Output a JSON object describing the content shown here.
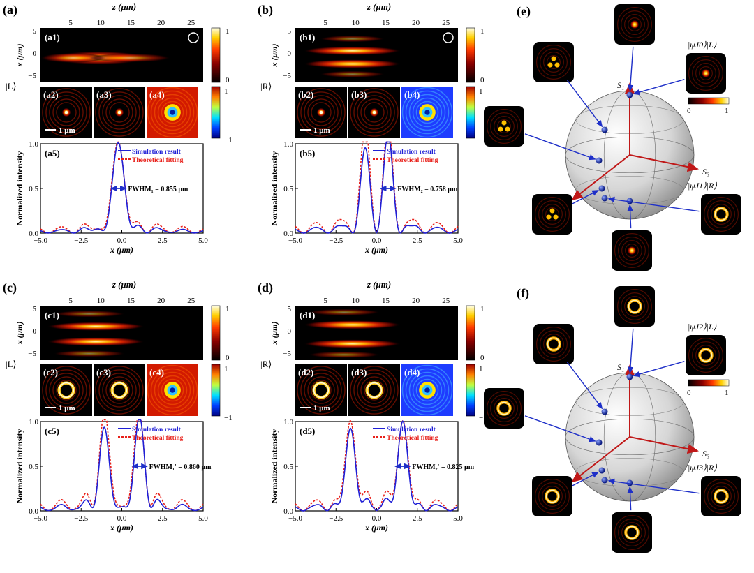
{
  "panel_letters": {
    "a": "(a)",
    "b": "(b)",
    "c": "(c)",
    "d": "(d)",
    "e": "(e)",
    "f": "(f)"
  },
  "axis": {
    "z_label": "z (μm)",
    "x_label": "x (μm)",
    "x_um_label": "x (μm)",
    "intensity_label": "Normalized intensity",
    "z_ticks": [
      "5",
      "10",
      "15",
      "20",
      "25"
    ],
    "x_ticks_field": [
      "5",
      "0",
      "−5"
    ],
    "cb_ticks_top": [
      "1",
      "0"
    ],
    "cb_ticks_pol": [
      "1",
      "−1"
    ]
  },
  "scale_bar": "1 μm",
  "legend": {
    "sim": "Simulation result",
    "theory": "Theoretical fitting"
  },
  "colors": {
    "sim": "#1f1fd6",
    "theory": "#e8201a",
    "arrow": "#1e2fc8",
    "axis_red": "#c01818"
  },
  "rows": [
    {
      "key": "a",
      "state": "|L⟩",
      "sub": [
        "(a1)",
        "(a2)",
        "(a3)",
        "(a4)",
        "(a5)"
      ],
      "fwhm": "FWHM₁ = 0.855 μm",
      "circ": true,
      "pol": "red"
    },
    {
      "key": "b",
      "state": "|R⟩",
      "sub": [
        "(b1)",
        "(b2)",
        "(b3)",
        "(b4)",
        "(b5)"
      ],
      "fwhm": "FWHM₂ = 0.758 μm",
      "circ": true,
      "pol": "blue"
    },
    {
      "key": "c",
      "state": "|L⟩",
      "sub": [
        "(c1)",
        "(c2)",
        "(c3)",
        "(c4)",
        "(c5)"
      ],
      "fwhm": "FWHM₁' = 0.860 μm",
      "circ": false,
      "pol": "yellow"
    },
    {
      "key": "d",
      "state": "|R⟩",
      "sub": [
        "(d1)",
        "(d2)",
        "(d3)",
        "(d4)",
        "(d5)"
      ],
      "fwhm": "FWHM₂' = 0.825 μm",
      "circ": false,
      "pol": "blue"
    }
  ],
  "sphere_e": {
    "s1": "S₁",
    "s2": "S₂",
    "s3": "S₃",
    "top_label": "|ψJ0⟩|L⟩",
    "bottom_label": "|ψJ1⟩|R⟩",
    "cb": [
      "0",
      "1"
    ]
  },
  "sphere_f": {
    "s1": "S₁",
    "s2": "S₂",
    "s3": "S₃",
    "top_label": "|ψJ2⟩|L⟩",
    "bottom_label": "|ψJ3⟩|R⟩",
    "cb": [
      "0",
      "1"
    ]
  },
  "chart_data": [
    {
      "type": "line",
      "panel": "(a5)",
      "xlabel": "x (μm)",
      "ylabel": "Normalized intensity",
      "xlim": [
        -5,
        5
      ],
      "ylim": [
        0,
        1
      ],
      "x_ticks": [
        "−5.0",
        "−2.5",
        "0.0",
        "2.5",
        "5.0"
      ],
      "y_ticks": [
        "0.0",
        "0.5",
        "1.0"
      ],
      "series": [
        {
          "name": "Simulation result",
          "shape": "single peak",
          "peak_x": [
            -0.2
          ],
          "peak_y": [
            1.0
          ]
        },
        {
          "name": "Theoretical fitting",
          "shape": "single peak",
          "peak_x": [
            -0.2
          ],
          "peak_y": [
            1.0
          ]
        }
      ],
      "annotation": "FWHM₁ = 0.855 μm"
    },
    {
      "type": "line",
      "panel": "(b5)",
      "xlabel": "x (μm)",
      "ylabel": "Normalized intensity",
      "xlim": [
        -5,
        5
      ],
      "ylim": [
        0,
        1
      ],
      "x_ticks": [
        "−5.0",
        "−2.5",
        "0.0",
        "2.5",
        "5.0"
      ],
      "y_ticks": [
        "0.0",
        "0.5",
        "1.0"
      ],
      "series": [
        {
          "name": "Simulation result",
          "peak_x": [
            -0.7,
            0.7
          ],
          "peak_y": [
            0.85,
            1.0
          ]
        },
        {
          "name": "Theoretical fitting",
          "peak_x": [
            -0.7,
            0.7
          ],
          "peak_y": [
            1.0,
            1.0
          ]
        }
      ],
      "annotation": "FWHM₂ = 0.758 μm"
    },
    {
      "type": "line",
      "panel": "(c5)",
      "xlabel": "x (μm)",
      "ylabel": "Normalized intensity",
      "xlim": [
        -5,
        5
      ],
      "ylim": [
        0,
        1
      ],
      "x_ticks": [
        "−5.0",
        "−2.5",
        "0.0",
        "2.5",
        "5.0"
      ],
      "y_ticks": [
        "0.0",
        "0.5",
        "1.0"
      ],
      "series": [
        {
          "name": "Simulation result",
          "peak_x": [
            -1.1,
            1.1
          ],
          "peak_y": [
            0.88,
            1.0
          ]
        },
        {
          "name": "Theoretical fitting",
          "peak_x": [
            -1.1,
            1.1
          ],
          "peak_y": [
            1.0,
            1.0
          ]
        }
      ],
      "annotation": "FWHM₁' = 0.860 μm"
    },
    {
      "type": "line",
      "panel": "(d5)",
      "xlabel": "x (μm)",
      "ylabel": "Normalized intensity",
      "xlim": [
        -5,
        5
      ],
      "ylim": [
        0,
        1
      ],
      "x_ticks": [
        "−5.0",
        "−2.5",
        "0.0",
        "2.5",
        "5.0"
      ],
      "y_ticks": [
        "0.0",
        "0.5",
        "1.0"
      ],
      "series": [
        {
          "name": "Simulation result",
          "peak_x": [
            -1.6,
            1.6
          ],
          "peak_y": [
            0.92,
            1.0
          ]
        },
        {
          "name": "Theoretical fitting",
          "peak_x": [
            -1.6,
            1.6
          ],
          "peak_y": [
            1.0,
            1.0
          ]
        }
      ],
      "annotation": "FWHM₂' = 0.825 μm"
    }
  ]
}
